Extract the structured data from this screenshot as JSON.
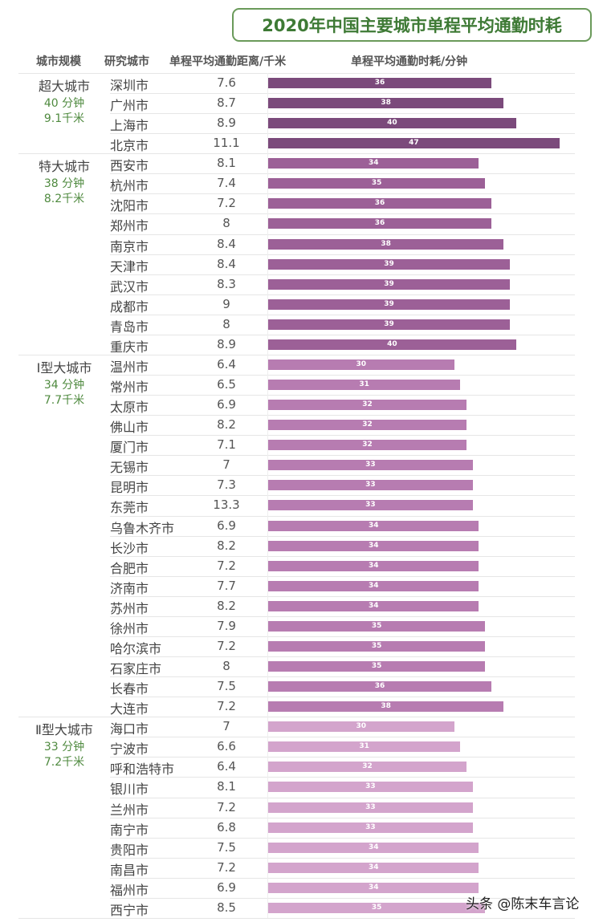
{
  "chart_data": {
    "type": "bar",
    "title": "2020年中国主要城市单程平均通勤时耗",
    "columns": [
      "城市规模",
      "研究城市",
      "单程平均通勤距离/千米",
      "单程平均通勤时耗/分钟"
    ],
    "xlim": [
      0,
      47
    ],
    "groups": [
      {
        "name": "超大城市",
        "avg_time": "40 分钟",
        "avg_dist": "9.1千米",
        "color": "#7b4a7b",
        "rows": [
          [
            "深圳市",
            "7.6",
            36
          ],
          [
            "广州市",
            "8.7",
            38
          ],
          [
            "上海市",
            "8.9",
            40
          ],
          [
            "北京市",
            "11.1",
            47
          ]
        ]
      },
      {
        "name": "特大城市",
        "avg_time": "38 分钟",
        "avg_dist": "8.2千米",
        "color": "#9c6097",
        "rows": [
          [
            "西安市",
            "8.1",
            34
          ],
          [
            "杭州市",
            "7.4",
            35
          ],
          [
            "沈阳市",
            "7.2",
            36
          ],
          [
            "郑州市",
            "8",
            36
          ],
          [
            "南京市",
            "8.4",
            38
          ],
          [
            "天津市",
            "8.4",
            39
          ],
          [
            "武汉市",
            "8.3",
            39
          ],
          [
            "成都市",
            "9",
            39
          ],
          [
            "青岛市",
            "8",
            39
          ],
          [
            "重庆市",
            "8.9",
            40
          ]
        ]
      },
      {
        "name": "Ⅰ型大城市",
        "avg_time": "34 分钟",
        "avg_dist": "7.7千米",
        "color": "#b77cb1",
        "rows": [
          [
            "温州市",
            "6.4",
            30
          ],
          [
            "常州市",
            "6.5",
            31
          ],
          [
            "太原市",
            "6.9",
            32
          ],
          [
            "佛山市",
            "8.2",
            32
          ],
          [
            "厦门市",
            "7.1",
            32
          ],
          [
            "无锡市",
            "7",
            33
          ],
          [
            "昆明市",
            "7.3",
            33
          ],
          [
            "东莞市",
            "13.3",
            33
          ],
          [
            "乌鲁木齐市",
            "6.9",
            34
          ],
          [
            "长沙市",
            "8.2",
            34
          ],
          [
            "合肥市",
            "7.2",
            34
          ],
          [
            "济南市",
            "7.7",
            34
          ],
          [
            "苏州市",
            "8.2",
            34
          ],
          [
            "徐州市",
            "7.9",
            35
          ],
          [
            "哈尔滨市",
            "7.2",
            35
          ],
          [
            "石家庄市",
            "8",
            35
          ],
          [
            "长春市",
            "7.5",
            36
          ],
          [
            "大连市",
            "7.2",
            38
          ]
        ]
      },
      {
        "name": "Ⅱ型大城市",
        "avg_time": "33 分钟",
        "avg_dist": "7.2千米",
        "color": "#d3a4cc",
        "rows": [
          [
            "海口市",
            "7",
            30
          ],
          [
            "宁波市",
            "6.6",
            31
          ],
          [
            "呼和浩特市",
            "6.4",
            32
          ],
          [
            "银川市",
            "8.1",
            33
          ],
          [
            "兰州市",
            "7.2",
            33
          ],
          [
            "南宁市",
            "6.8",
            33
          ],
          [
            "贵阳市",
            "7.5",
            34
          ],
          [
            "南昌市",
            "7.2",
            34
          ],
          [
            "福州市",
            "6.9",
            34
          ],
          [
            "西宁市",
            "8.5",
            35
          ]
        ]
      }
    ]
  },
  "watermark": "头条 @陈末车言论"
}
